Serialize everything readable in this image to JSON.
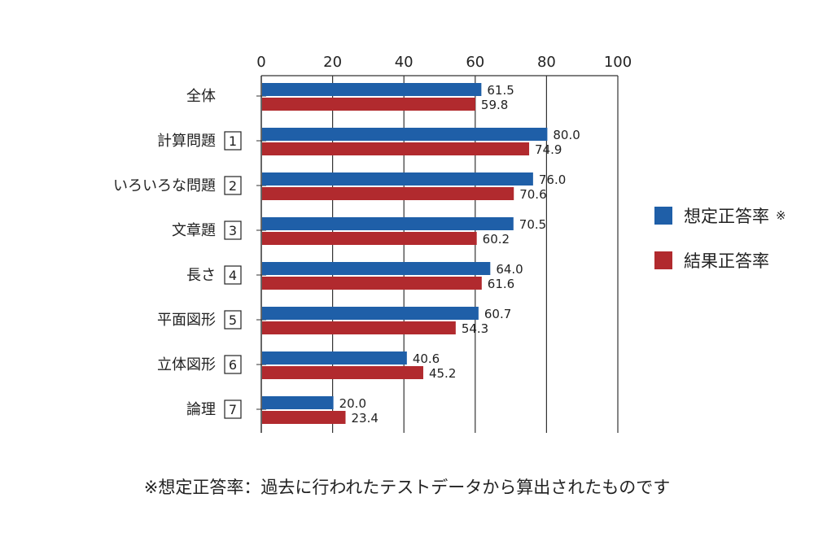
{
  "chart_data": {
    "type": "bar",
    "orientation": "horizontal",
    "categories": [
      {
        "label": "全体",
        "number": ""
      },
      {
        "label": "計算問題",
        "number": "1"
      },
      {
        "label": "いろいろな問題",
        "number": "2"
      },
      {
        "label": "文章題",
        "number": "3"
      },
      {
        "label": "長さ",
        "number": "4"
      },
      {
        "label": "平面図形",
        "number": "5"
      },
      {
        "label": "立体図形",
        "number": "6"
      },
      {
        "label": "論理",
        "number": "7"
      }
    ],
    "series": [
      {
        "name": "想定正答率",
        "color": "#1f5fa8",
        "values": [
          61.5,
          80.0,
          76.0,
          70.5,
          64.0,
          60.7,
          40.6,
          20.0
        ],
        "value_labels": [
          "61.5",
          "80.0",
          "76.0",
          "70.5",
          "64.0",
          "60.7",
          "40.6",
          "20.0"
        ]
      },
      {
        "name": "結果正答率",
        "color": "#b12a2e",
        "values": [
          59.8,
          74.9,
          70.6,
          60.2,
          61.6,
          54.3,
          45.2,
          23.4
        ],
        "value_labels": [
          "59.8",
          "74.9",
          "70.6",
          "60.2",
          "61.6",
          "54.3",
          "45.2",
          "23.4"
        ]
      }
    ],
    "xlim": [
      0,
      100
    ],
    "ticks": [
      0,
      20,
      40,
      60,
      80,
      100
    ],
    "tick_labels": [
      "0",
      "20",
      "40",
      "60",
      "80",
      "100"
    ],
    "legend_position": "right",
    "grid": true
  },
  "legend": {
    "items": [
      {
        "label": "想定正答率",
        "note": "※",
        "color": "#1f5fa8"
      },
      {
        "label": "結果正答率",
        "note": "",
        "color": "#b12a2e"
      }
    ]
  },
  "footnote": "※想定正答率：過去に行われたテストデータから算出されたものです"
}
